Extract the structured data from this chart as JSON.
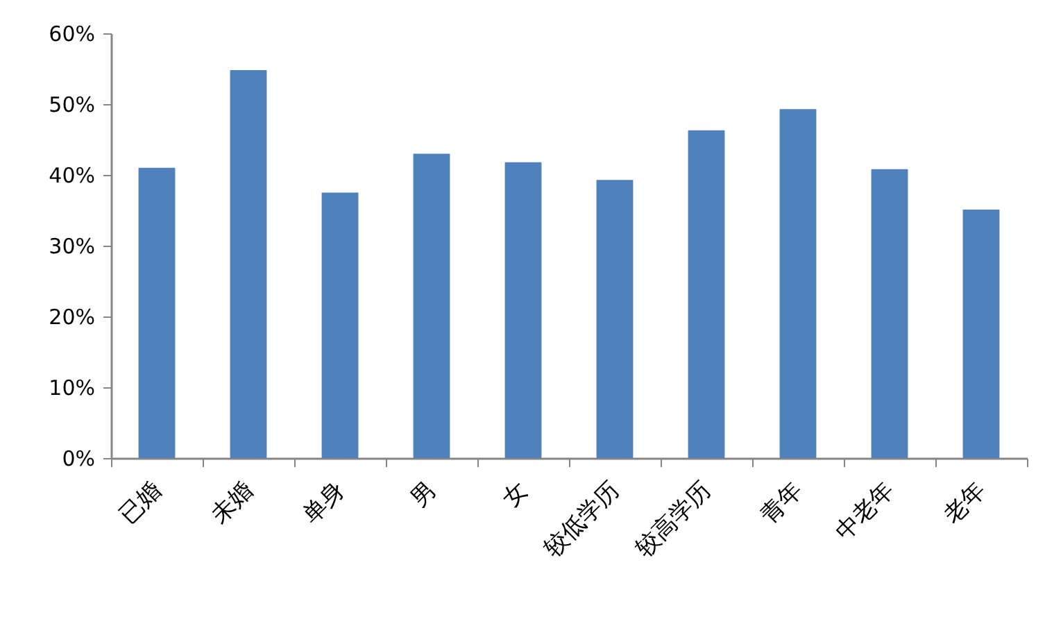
{
  "chart_data": {
    "type": "bar",
    "categories": [
      "已婚",
      "未婚",
      "单身",
      "男",
      "女",
      "较低学历",
      "较高学历",
      "青年",
      "中老年",
      "老年"
    ],
    "values": [
      41.0,
      54.8,
      37.5,
      43.0,
      41.8,
      39.3,
      46.3,
      49.3,
      40.8,
      35.1
    ],
    "color": "#4f81bd",
    "ylim": [
      0,
      60
    ],
    "yticks": [
      {
        "value": 0,
        "label": "0%"
      },
      {
        "value": 10,
        "label": "10%"
      },
      {
        "value": 20,
        "label": "20%"
      },
      {
        "value": 30,
        "label": "30%"
      },
      {
        "value": 40,
        "label": "40%"
      },
      {
        "value": 50,
        "label": "50%"
      },
      {
        "value": 60,
        "label": "60%"
      }
    ]
  }
}
